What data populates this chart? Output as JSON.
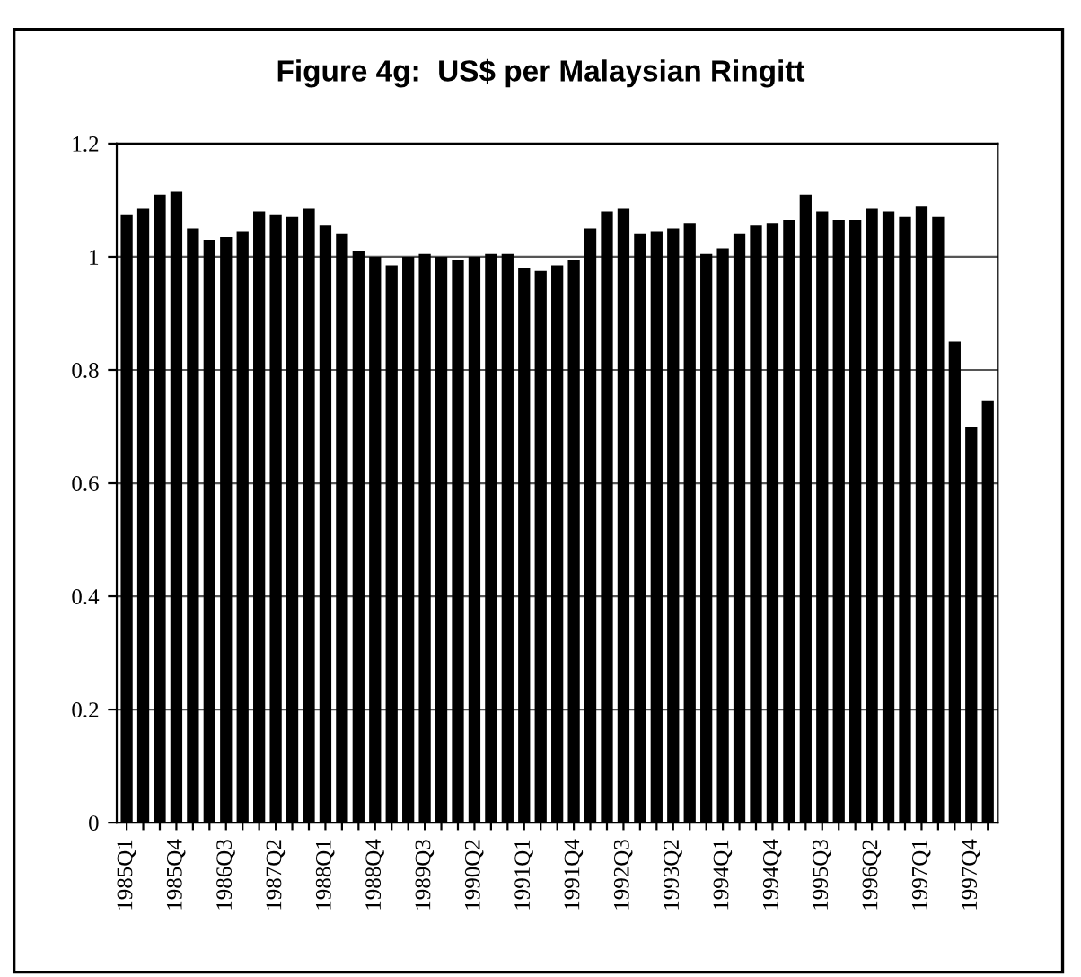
{
  "chart_data": {
    "type": "bar",
    "title": "Figure 4g:  US$ per Malaysian Ringitt",
    "categories": [
      "1985Q1",
      null,
      null,
      "1985Q4",
      null,
      null,
      "1986Q3",
      null,
      null,
      "1987Q2",
      null,
      null,
      "1988Q1",
      null,
      null,
      "1988Q4",
      null,
      null,
      "1989Q3",
      null,
      null,
      "1990Q2",
      null,
      null,
      "1991Q1",
      null,
      null,
      "1991Q4",
      null,
      null,
      "1992Q3",
      null,
      null,
      "1993Q2",
      null,
      null,
      "1994Q1",
      null,
      null,
      "1994Q4",
      null,
      null,
      "1995Q3",
      null,
      null,
      "1996Q2",
      null,
      null,
      "1997Q1",
      null,
      null,
      "1997Q4",
      null
    ],
    "values": [
      1.075,
      1.085,
      1.11,
      1.115,
      1.05,
      1.03,
      1.035,
      1.045,
      1.08,
      1.075,
      1.07,
      1.085,
      1.055,
      1.04,
      1.01,
      1.0,
      0.985,
      1.0,
      1.005,
      1.0,
      0.995,
      1.0,
      1.005,
      1.005,
      0.98,
      0.975,
      0.985,
      0.995,
      1.05,
      1.08,
      1.085,
      1.04,
      1.045,
      1.05,
      1.06,
      1.005,
      1.015,
      1.04,
      1.055,
      1.06,
      1.065,
      1.11,
      1.08,
      1.065,
      1.065,
      1.085,
      1.08,
      1.07,
      1.09,
      1.07,
      0.85,
      0.7,
      0.745
    ],
    "color": "#000000",
    "ylim": [
      0,
      1.2
    ],
    "yticks": [
      0,
      0.2,
      0.4,
      0.6,
      0.8,
      1,
      1.2
    ],
    "grid": "y",
    "legend": false
  }
}
